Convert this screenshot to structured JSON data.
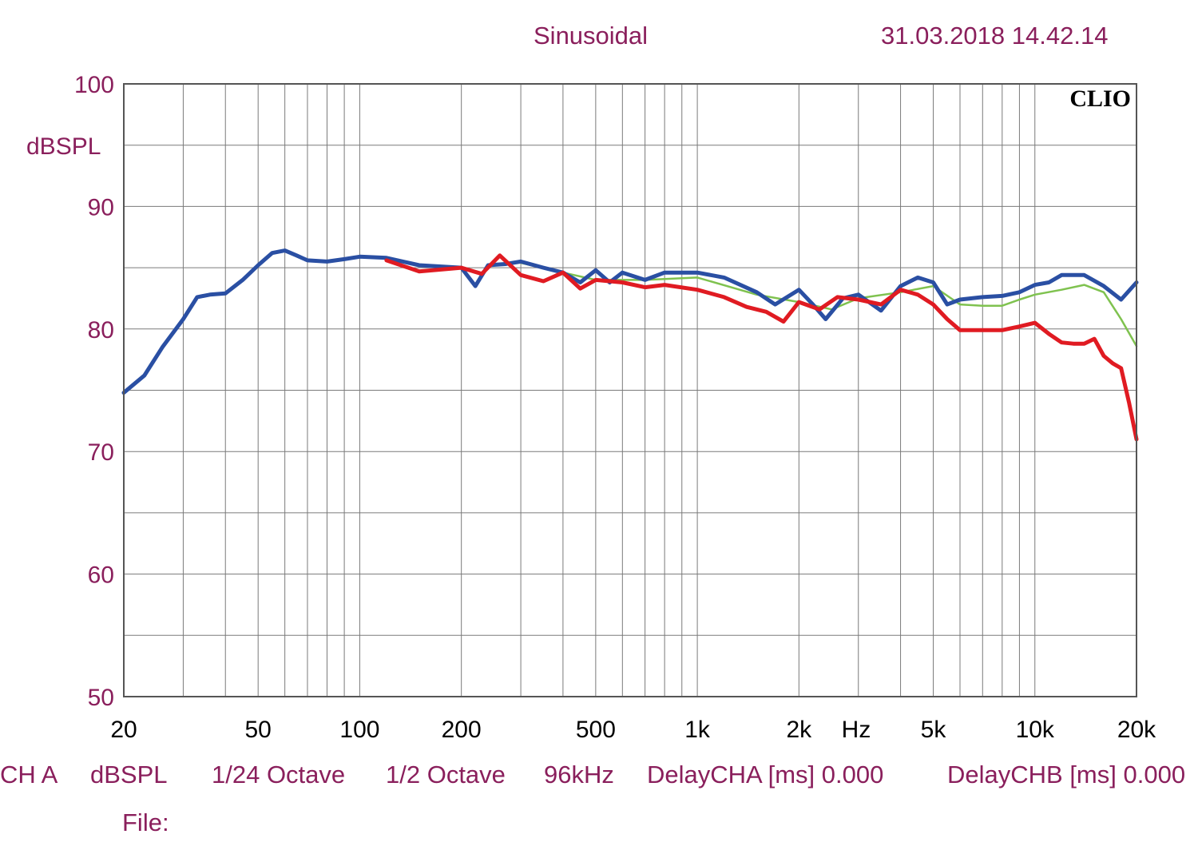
{
  "header": {
    "title": "Sinusoidal",
    "timestamp": "31.03.2018 14.42.14",
    "brand": "CLIO"
  },
  "footer": {
    "channel": "CH A",
    "unit": "dBSPL",
    "resolution": "1/24 Octave",
    "smoothing": "1/2 Octave",
    "sample_rate": "96kHz",
    "delay_a": "DelayCHA [ms] 0.000",
    "delay_b": "DelayCHB [ms] 0.000",
    "file_label": "File:"
  },
  "colors": {
    "label_text": "#8a1f5c",
    "grid": "#7a7a7a",
    "series_blue": "#2a4fa3",
    "series_red": "#e01b22",
    "series_green": "#7fc24f"
  },
  "chart_data": {
    "type": "line",
    "ylabel": "dBSPL",
    "xlabel": "Hz",
    "x_scale": "log",
    "xlim": [
      20,
      20000
    ],
    "ylim": [
      50,
      100
    ],
    "grid": true,
    "x_ticks": [
      {
        "value": 20,
        "label": "20"
      },
      {
        "value": 50,
        "label": "50"
      },
      {
        "value": 100,
        "label": "100"
      },
      {
        "value": 200,
        "label": "200"
      },
      {
        "value": 500,
        "label": "500"
      },
      {
        "value": 1000,
        "label": "1k"
      },
      {
        "value": 2000,
        "label": "2k"
      },
      {
        "value": 5000,
        "label": "5k"
      },
      {
        "value": 10000,
        "label": "10k"
      },
      {
        "value": 20000,
        "label": "20k"
      }
    ],
    "y_ticks": [
      {
        "value": 100,
        "label": "100"
      },
      {
        "value": 90,
        "label": "90"
      },
      {
        "value": 80,
        "label": "80"
      },
      {
        "value": 70,
        "label": "70"
      },
      {
        "value": 60,
        "label": "60"
      },
      {
        "value": 50,
        "label": "50"
      }
    ],
    "series": [
      {
        "color": "#7fc24f",
        "x": [
          300,
          400,
          500,
          700,
          1000,
          1500,
          2000,
          2500,
          3000,
          4000,
          5000,
          6000,
          7000,
          8000,
          9000,
          10000,
          12000,
          14000,
          16000,
          18000,
          20000
        ],
        "y": [
          85.4,
          84.6,
          84.0,
          84.0,
          84.2,
          82.8,
          82.2,
          81.6,
          82.5,
          83.0,
          83.5,
          82.0,
          81.9,
          81.9,
          82.4,
          82.8,
          83.2,
          83.6,
          83.0,
          80.8,
          78.6
        ]
      },
      {
        "color": "#2a4fa3",
        "x": [
          20,
          23,
          26,
          30,
          33,
          36,
          40,
          45,
          50,
          55,
          60,
          65,
          70,
          80,
          90,
          100,
          120,
          150,
          200,
          220,
          240,
          270,
          300,
          350,
          400,
          450,
          500,
          550,
          600,
          700,
          800,
          1000,
          1200,
          1500,
          1700,
          2000,
          2200,
          2400,
          2700,
          3000,
          3500,
          4000,
          4500,
          5000,
          5500,
          6000,
          7000,
          8000,
          9000,
          10000,
          11000,
          12000,
          14000,
          16000,
          18000,
          20000
        ],
        "y": [
          74.8,
          76.2,
          78.5,
          80.8,
          82.6,
          82.8,
          82.9,
          84.0,
          85.2,
          86.2,
          86.4,
          86.0,
          85.6,
          85.5,
          85.7,
          85.9,
          85.8,
          85.2,
          85.0,
          83.5,
          85.2,
          85.3,
          85.5,
          85.0,
          84.6,
          83.8,
          84.8,
          83.8,
          84.6,
          84.0,
          84.6,
          84.6,
          84.2,
          83.0,
          82.0,
          83.2,
          82.0,
          80.8,
          82.5,
          82.8,
          81.5,
          83.5,
          84.2,
          83.8,
          82.0,
          82.4,
          82.6,
          82.7,
          83.0,
          83.6,
          83.8,
          84.4,
          84.4,
          83.5,
          82.4,
          83.8
        ]
      },
      {
        "color": "#e01b22",
        "x": [
          120,
          150,
          200,
          230,
          260,
          300,
          350,
          400,
          450,
          500,
          600,
          700,
          800,
          1000,
          1200,
          1400,
          1600,
          1800,
          2000,
          2300,
          2600,
          3000,
          3500,
          4000,
          4500,
          5000,
          5500,
          6000,
          7000,
          8000,
          9000,
          10000,
          11000,
          12000,
          13000,
          14000,
          15000,
          16000,
          17000,
          18000,
          19000,
          20000
        ],
        "y": [
          85.6,
          84.7,
          85.0,
          84.5,
          86.0,
          84.4,
          83.9,
          84.6,
          83.3,
          84.0,
          83.8,
          83.4,
          83.6,
          83.2,
          82.6,
          81.8,
          81.4,
          80.6,
          82.2,
          81.6,
          82.6,
          82.4,
          82.0,
          83.2,
          82.8,
          82.0,
          80.8,
          79.9,
          79.9,
          79.9,
          80.2,
          80.5,
          79.6,
          78.9,
          78.8,
          78.8,
          79.2,
          77.8,
          77.2,
          76.8,
          74.0,
          71.0
        ]
      }
    ]
  }
}
